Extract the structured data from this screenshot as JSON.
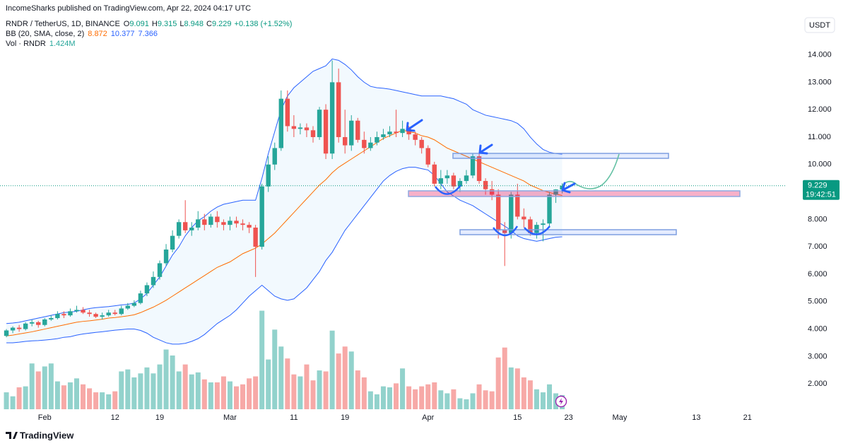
{
  "publisher": "IncomeSharks published on TradingView.com, Apr 22, 2024 04:17 UTC",
  "currency": "USDT",
  "countdown": "19:42:51",
  "logo": "TradingView",
  "chart_data": {
    "type": "candlestick",
    "symbol": "RNDR / TetherUS, 1D, BINANCE",
    "ohlc_labels": [
      "O",
      "H",
      "L",
      "C"
    ],
    "change_label": "+0.138 (+1.52%)",
    "up_color": "#26a69a",
    "down_color": "#ef5350",
    "grid": false,
    "xlim": [
      "2024-01-25",
      "2024-05-27"
    ],
    "ylim": [
      1.05,
      16.0
    ],
    "xticks": [
      {
        "value": "2024-02-01",
        "label": "Feb"
      },
      {
        "value": "2024-02-12",
        "label": "12"
      },
      {
        "value": "2024-02-19",
        "label": "19"
      },
      {
        "value": "2024-03-01",
        "label": "Mar"
      },
      {
        "value": "2024-03-11",
        "label": "11"
      },
      {
        "value": "2024-03-19",
        "label": "19"
      },
      {
        "value": "2024-04-01",
        "label": "Apr"
      },
      {
        "value": "2024-04-15",
        "label": "15"
      },
      {
        "value": "2024-04-23",
        "label": "23"
      },
      {
        "value": "2024-05-01",
        "label": "May"
      },
      {
        "value": "2024-05-13",
        "label": "13"
      },
      {
        "value": "2024-05-21",
        "label": "21"
      }
    ],
    "yticks": [
      {
        "value": 14,
        "label": "14.000"
      },
      {
        "value": 13,
        "label": "13.000"
      },
      {
        "value": 12,
        "label": "12.000"
      },
      {
        "value": 11,
        "label": "11.000"
      },
      {
        "value": 10,
        "label": "10.000"
      },
      {
        "value": 9,
        "label": "9.000"
      },
      {
        "value": 8,
        "label": "8.000"
      },
      {
        "value": 7,
        "label": "7.000"
      },
      {
        "value": 6,
        "label": "6.000"
      },
      {
        "value": 5,
        "label": "5.000"
      },
      {
        "value": 4,
        "label": "4.000"
      },
      {
        "value": 3,
        "label": "3.000"
      },
      {
        "value": 2,
        "label": "2.000"
      }
    ],
    "x": [
      "2024-01-26",
      "2024-01-27",
      "2024-01-28",
      "2024-01-29",
      "2024-01-30",
      "2024-01-31",
      "2024-02-01",
      "2024-02-02",
      "2024-02-03",
      "2024-02-04",
      "2024-02-05",
      "2024-02-06",
      "2024-02-07",
      "2024-02-08",
      "2024-02-09",
      "2024-02-10",
      "2024-02-11",
      "2024-02-12",
      "2024-02-13",
      "2024-02-14",
      "2024-02-15",
      "2024-02-16",
      "2024-02-17",
      "2024-02-18",
      "2024-02-19",
      "2024-02-20",
      "2024-02-21",
      "2024-02-22",
      "2024-02-23",
      "2024-02-24",
      "2024-02-25",
      "2024-02-26",
      "2024-02-27",
      "2024-02-28",
      "2024-02-29",
      "2024-03-01",
      "2024-03-02",
      "2024-03-03",
      "2024-03-04",
      "2024-03-05",
      "2024-03-06",
      "2024-03-07",
      "2024-03-08",
      "2024-03-09",
      "2024-03-10",
      "2024-03-11",
      "2024-03-12",
      "2024-03-13",
      "2024-03-14",
      "2024-03-15",
      "2024-03-16",
      "2024-03-17",
      "2024-03-18",
      "2024-03-19",
      "2024-03-20",
      "2024-03-21",
      "2024-03-22",
      "2024-03-23",
      "2024-03-24",
      "2024-03-25",
      "2024-03-26",
      "2024-03-27",
      "2024-03-28",
      "2024-03-29",
      "2024-03-30",
      "2024-03-31",
      "2024-04-01",
      "2024-04-02",
      "2024-04-03",
      "2024-04-04",
      "2024-04-05",
      "2024-04-06",
      "2024-04-07",
      "2024-04-08",
      "2024-04-09",
      "2024-04-10",
      "2024-04-11",
      "2024-04-12",
      "2024-04-13",
      "2024-04-14",
      "2024-04-15",
      "2024-04-16",
      "2024-04-17",
      "2024-04-18",
      "2024-04-19",
      "2024-04-20",
      "2024-04-21",
      "2024-04-22"
    ],
    "open": [
      3.75,
      3.95,
      4.05,
      4.0,
      4.2,
      4.25,
      4.15,
      4.35,
      4.4,
      4.55,
      4.5,
      4.65,
      4.7,
      4.6,
      4.55,
      4.45,
      4.5,
      4.6,
      4.55,
      4.75,
      4.85,
      4.95,
      5.3,
      5.6,
      5.9,
      6.4,
      6.9,
      7.4,
      7.9,
      7.6,
      7.7,
      8.0,
      7.8,
      8.1,
      7.9,
      7.8,
      7.95,
      7.85,
      7.8,
      7.7,
      7.0,
      9.2,
      10.0,
      10.6,
      12.4,
      11.4,
      11.3,
      11.35,
      11.25,
      11.0,
      12.0,
      10.4,
      13.0,
      11.0,
      10.7,
      11.6,
      10.9,
      10.6,
      10.8,
      11.0,
      11.1,
      11.2,
      11.15,
      11.3,
      11.1,
      10.9,
      10.6,
      10.0,
      9.3,
      9.5,
      9.6,
      9.2,
      9.4,
      9.6,
      10.3,
      9.4,
      9.1,
      8.9,
      7.6,
      7.5,
      8.9,
      8.1,
      8.0,
      7.5,
      7.8,
      7.85,
      8.9,
      9.091
    ],
    "high": [
      4.0,
      4.1,
      4.15,
      4.25,
      4.35,
      4.3,
      4.4,
      4.5,
      4.65,
      4.65,
      4.75,
      4.85,
      4.8,
      4.7,
      4.6,
      4.6,
      4.7,
      4.7,
      4.85,
      4.95,
      5.05,
      5.4,
      5.7,
      6.1,
      6.5,
      7.1,
      7.6,
      8.0,
      8.7,
      7.9,
      8.3,
      8.2,
      8.2,
      8.3,
      8.0,
      8.1,
      8.1,
      8.0,
      7.9,
      7.8,
      9.3,
      10.3,
      10.8,
      12.7,
      12.7,
      11.8,
      11.5,
      11.5,
      11.4,
      12.1,
      12.2,
      13.8,
      13.5,
      12.0,
      11.8,
      11.7,
      11.2,
      11.0,
      11.2,
      11.3,
      11.4,
      12.0,
      11.6,
      11.4,
      11.2,
      11.0,
      10.7,
      10.1,
      9.8,
      9.8,
      9.7,
      9.5,
      9.8,
      10.4,
      10.4,
      9.5,
      9.4,
      9.1,
      7.9,
      9.0,
      9.3,
      8.4,
      8.1,
      7.9,
      8.0,
      9.0,
      9.1,
      9.315
    ],
    "low": [
      3.7,
      3.85,
      3.9,
      3.95,
      4.1,
      4.05,
      4.1,
      4.3,
      4.35,
      4.4,
      4.45,
      4.6,
      4.55,
      4.45,
      4.4,
      4.35,
      4.45,
      4.5,
      4.5,
      4.7,
      4.8,
      4.9,
      5.2,
      5.5,
      5.8,
      6.3,
      6.8,
      7.3,
      7.5,
      7.4,
      7.6,
      7.6,
      7.7,
      7.7,
      7.6,
      7.6,
      7.7,
      7.6,
      7.5,
      5.9,
      6.9,
      9.0,
      9.8,
      10.5,
      11.2,
      11.0,
      11.1,
      11.0,
      10.8,
      10.9,
      10.2,
      10.2,
      10.8,
      10.4,
      10.5,
      10.8,
      10.4,
      10.5,
      10.7,
      10.9,
      11.0,
      11.0,
      11.0,
      10.9,
      10.7,
      10.4,
      9.9,
      9.2,
      9.1,
      9.3,
      9.1,
      9.0,
      9.3,
      9.5,
      9.3,
      8.9,
      8.7,
      7.3,
      6.3,
      7.3,
      8.0,
      7.7,
      7.4,
      7.3,
      7.2,
      7.7,
      8.6,
      8.948
    ],
    "close": [
      3.95,
      4.05,
      4.0,
      4.2,
      4.25,
      4.15,
      4.35,
      4.4,
      4.55,
      4.5,
      4.65,
      4.7,
      4.6,
      4.55,
      4.45,
      4.5,
      4.6,
      4.55,
      4.75,
      4.85,
      4.95,
      5.3,
      5.6,
      5.9,
      6.4,
      6.9,
      7.4,
      7.9,
      7.6,
      7.7,
      8.0,
      7.8,
      8.1,
      7.9,
      7.8,
      7.95,
      7.85,
      7.8,
      7.7,
      7.0,
      9.2,
      10.0,
      10.6,
      12.4,
      11.4,
      11.3,
      11.35,
      11.25,
      11.0,
      12.0,
      10.4,
      13.0,
      11.0,
      10.7,
      11.6,
      10.9,
      10.6,
      10.8,
      11.0,
      11.1,
      11.2,
      11.15,
      11.3,
      11.1,
      10.9,
      10.6,
      10.0,
      9.3,
      9.5,
      9.6,
      9.2,
      9.4,
      9.6,
      10.3,
      9.4,
      9.1,
      8.9,
      7.6,
      7.5,
      8.9,
      8.1,
      8.0,
      7.5,
      7.8,
      7.85,
      8.9,
      9.091,
      9.229
    ],
    "bb": {
      "name": "BB (20, SMA, close, 2)",
      "basis_color": "#ff6d00",
      "band_color": "#2962ff",
      "basis": [
        3.75,
        3.78,
        3.82,
        3.86,
        3.9,
        3.95,
        4.0,
        4.05,
        4.1,
        4.15,
        4.2,
        4.25,
        4.28,
        4.3,
        4.33,
        4.36,
        4.4,
        4.42,
        4.45,
        4.48,
        4.52,
        4.6,
        4.7,
        4.8,
        4.92,
        5.05,
        5.2,
        5.35,
        5.5,
        5.65,
        5.8,
        5.95,
        6.1,
        6.25,
        6.35,
        6.45,
        6.6,
        6.75,
        6.85,
        6.95,
        7.1,
        7.3,
        7.5,
        7.75,
        8.0,
        8.25,
        8.5,
        8.75,
        9.0,
        9.25,
        9.45,
        9.7,
        9.9,
        10.05,
        10.2,
        10.35,
        10.5,
        10.65,
        10.8,
        10.95,
        11.05,
        11.15,
        11.25,
        11.2,
        11.15,
        11.05,
        11.0,
        10.9,
        10.75,
        10.6,
        10.5,
        10.4,
        10.3,
        10.2,
        10.1,
        10.0,
        9.9,
        9.8,
        9.7,
        9.6,
        9.5,
        9.4,
        9.25,
        9.15,
        9.05,
        8.98,
        8.92,
        8.872
      ],
      "upper": [
        4.2,
        4.22,
        4.25,
        4.3,
        4.35,
        4.4,
        4.45,
        4.5,
        4.55,
        4.6,
        4.62,
        4.65,
        4.7,
        4.75,
        4.78,
        4.8,
        4.82,
        4.85,
        4.88,
        4.9,
        4.95,
        5.1,
        5.3,
        5.6,
        5.9,
        6.3,
        6.7,
        7.0,
        7.4,
        7.7,
        7.95,
        8.1,
        8.3,
        8.45,
        8.55,
        8.6,
        8.65,
        8.7,
        8.7,
        8.7,
        9.5,
        10.4,
        11.2,
        12.0,
        12.5,
        12.8,
        13.0,
        13.2,
        13.4,
        13.5,
        13.6,
        13.85,
        13.8,
        13.65,
        13.45,
        13.2,
        13.0,
        12.85,
        12.8,
        12.78,
        12.75,
        12.7,
        12.65,
        12.6,
        12.55,
        12.5,
        12.5,
        12.5,
        12.5,
        12.45,
        12.4,
        12.3,
        12.2,
        12.0,
        11.9,
        11.8,
        11.75,
        11.7,
        11.65,
        11.6,
        11.5,
        11.3,
        11.0,
        10.75,
        10.55,
        10.45,
        10.4,
        10.377
      ],
      "lower": [
        3.5,
        3.5,
        3.52,
        3.55,
        3.57,
        3.58,
        3.6,
        3.62,
        3.65,
        3.7,
        3.72,
        3.78,
        3.82,
        3.85,
        3.88,
        3.9,
        3.93,
        3.96,
        3.98,
        4.0,
        4.0,
        3.95,
        3.85,
        3.7,
        3.6,
        3.5,
        3.45,
        3.45,
        3.48,
        3.55,
        3.65,
        3.8,
        4.0,
        4.2,
        4.35,
        4.5,
        4.7,
        4.95,
        5.2,
        5.4,
        5.6,
        5.4,
        5.2,
        5.1,
        5.05,
        5.1,
        5.3,
        5.5,
        5.8,
        6.1,
        6.5,
        6.8,
        7.2,
        7.6,
        7.9,
        8.2,
        8.5,
        8.8,
        9.1,
        9.4,
        9.6,
        9.75,
        9.85,
        9.9,
        9.9,
        9.85,
        9.8,
        9.6,
        9.3,
        9.0,
        8.85,
        8.7,
        8.6,
        8.5,
        8.35,
        8.2,
        8.05,
        7.9,
        7.75,
        7.6,
        7.4,
        7.3,
        7.25,
        7.2,
        7.25,
        7.3,
        7.35,
        7.366
      ]
    },
    "volume": {
      "name": "Vol · RNDR",
      "last_label": "1.424M",
      "vlim": [
        0,
        12
      ],
      "values": [
        1.7,
        1.3,
        2.2,
        2.3,
        4.6,
        3.8,
        4.3,
        4.6,
        2.8,
        2.4,
        2.7,
        3.1,
        2.5,
        2.1,
        1.7,
        1.7,
        1.5,
        1.8,
        3.8,
        4.0,
        3.2,
        3.6,
        4.2,
        3.6,
        4.5,
        6.0,
        5.4,
        3.8,
        4.5,
        3.5,
        3.7,
        3.0,
        2.7,
        2.7,
        3.3,
        2.8,
        2.3,
        2.5,
        3.1,
        3.3,
        9.9,
        5.0,
        8.0,
        6.3,
        5.1,
        3.5,
        3.3,
        4.5,
        2.9,
        3.9,
        3.8,
        7.9,
        5.6,
        6.3,
        5.8,
        3.9,
        3.2,
        1.8,
        1.5,
        2.3,
        2.2,
        2.6,
        4.1,
        2.3,
        2.0,
        2.3,
        2.5,
        2.7,
        1.9,
        1.6,
        2.0,
        1.1,
        1.0,
        1.6,
        2.5,
        1.9,
        1.8,
        5.2,
        6.2,
        4.2,
        4.1,
        3.2,
        2.9,
        2.0,
        1.7,
        2.5,
        1.6,
        1.424
      ]
    }
  }
}
